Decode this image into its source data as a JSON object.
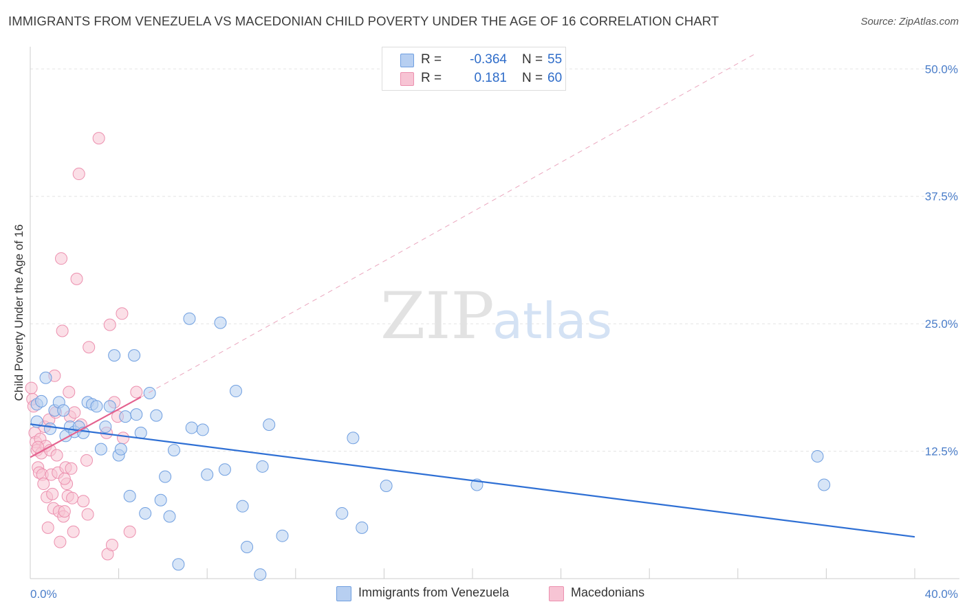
{
  "header": {
    "title": "IMMIGRANTS FROM VENEZUELA VS MACEDONIAN CHILD POVERTY UNDER THE AGE OF 16 CORRELATION CHART",
    "source": "Source: ZipAtlas.com"
  },
  "watermark": {
    "zip": "ZIP",
    "atlas": "atlas"
  },
  "stats": [
    {
      "r_label": "R =",
      "r_value": "-0.364",
      "n_label": "N =",
      "n_value": "55"
    },
    {
      "r_label": "R =",
      "r_value": "0.181",
      "n_label": "N =",
      "n_value": "60"
    }
  ],
  "legend": {
    "series1": "Immigrants from Venezuela",
    "series2": "Macedonians"
  },
  "colors": {
    "blue_fill": "#b7cff1",
    "blue_stroke": "#6e9ee0",
    "blue_line": "#2e6fd4",
    "pink_fill": "#f7c4d4",
    "pink_stroke": "#ec8fae",
    "pink_line": "#e4628f",
    "tick_label": "#4a7dc9",
    "grid": "#e3e3e3"
  },
  "chart_data": {
    "type": "scatter",
    "title": "IMMIGRANTS FROM VENEZUELA VS MACEDONIAN CHILD POVERTY UNDER THE AGE OF 16 CORRELATION CHART",
    "xlabel": "",
    "ylabel": "Child Poverty Under the Age of 16",
    "xlim": [
      0,
      40
    ],
    "ylim": [
      0,
      51.5
    ],
    "x_tick_labels": [
      "0.0%",
      "40.0%"
    ],
    "y_ticks": [
      12.5,
      25.0,
      37.5,
      50.0
    ],
    "y_tick_labels": [
      "12.5%",
      "25.0%",
      "37.5%",
      "50.0%"
    ],
    "grid": true,
    "legend_position": "bottom-center",
    "series": [
      {
        "name": "Immigrants from Venezuela",
        "r": -0.364,
        "n": 55,
        "points": [
          [
            0.3,
            17.1
          ],
          [
            0.3,
            15.4
          ],
          [
            0.7,
            19.7
          ],
          [
            0.9,
            14.7
          ],
          [
            1.1,
            16.5
          ],
          [
            1.3,
            17.3
          ],
          [
            1.5,
            16.5
          ],
          [
            1.6,
            14.0
          ],
          [
            1.8,
            14.9
          ],
          [
            2.0,
            14.4
          ],
          [
            2.2,
            14.9
          ],
          [
            2.4,
            14.3
          ],
          [
            2.6,
            17.3
          ],
          [
            2.8,
            17.1
          ],
          [
            3.0,
            16.9
          ],
          [
            3.2,
            12.7
          ],
          [
            3.4,
            14.9
          ],
          [
            3.6,
            16.9
          ],
          [
            3.8,
            21.9
          ],
          [
            4.0,
            12.1
          ],
          [
            4.1,
            12.7
          ],
          [
            4.3,
            15.9
          ],
          [
            4.5,
            8.1
          ],
          [
            4.7,
            21.9
          ],
          [
            4.8,
            16.1
          ],
          [
            5.0,
            14.3
          ],
          [
            5.2,
            6.4
          ],
          [
            5.4,
            18.2
          ],
          [
            5.7,
            16.0
          ],
          [
            5.9,
            7.7
          ],
          [
            6.1,
            10.0
          ],
          [
            6.3,
            6.1
          ],
          [
            6.5,
            12.6
          ],
          [
            6.7,
            1.4
          ],
          [
            7.2,
            25.5
          ],
          [
            7.3,
            14.8
          ],
          [
            7.8,
            14.6
          ],
          [
            8.0,
            10.2
          ],
          [
            8.6,
            25.1
          ],
          [
            8.8,
            10.7
          ],
          [
            9.3,
            18.4
          ],
          [
            9.6,
            7.1
          ],
          [
            9.8,
            3.1
          ],
          [
            10.4,
            0.4
          ],
          [
            10.5,
            11.0
          ],
          [
            10.8,
            15.1
          ],
          [
            11.4,
            4.2
          ],
          [
            14.1,
            6.4
          ],
          [
            14.6,
            13.8
          ],
          [
            15.0,
            5.0
          ],
          [
            16.1,
            9.1
          ],
          [
            20.2,
            9.2
          ],
          [
            35.6,
            12.0
          ],
          [
            35.9,
            9.2
          ],
          [
            0.5,
            17.4
          ]
        ]
      },
      {
        "name": "Macedonians",
        "r": 0.181,
        "n": 60,
        "points": [
          [
            0.05,
            18.7
          ],
          [
            0.1,
            17.6
          ],
          [
            0.15,
            16.9
          ],
          [
            0.2,
            14.3
          ],
          [
            0.25,
            13.4
          ],
          [
            0.3,
            12.6
          ],
          [
            0.35,
            10.9
          ],
          [
            0.4,
            10.4
          ],
          [
            0.45,
            13.7
          ],
          [
            0.5,
            12.3
          ],
          [
            0.55,
            10.2
          ],
          [
            0.6,
            9.3
          ],
          [
            0.65,
            14.9
          ],
          [
            0.7,
            13.0
          ],
          [
            0.75,
            8.0
          ],
          [
            0.8,
            5.0
          ],
          [
            0.85,
            15.6
          ],
          [
            0.9,
            12.6
          ],
          [
            0.95,
            10.2
          ],
          [
            1.0,
            8.3
          ],
          [
            1.05,
            6.9
          ],
          [
            1.1,
            19.9
          ],
          [
            1.15,
            16.3
          ],
          [
            1.2,
            12.1
          ],
          [
            1.25,
            10.4
          ],
          [
            1.3,
            6.6
          ],
          [
            1.35,
            3.6
          ],
          [
            1.4,
            31.4
          ],
          [
            1.45,
            24.3
          ],
          [
            1.5,
            6.1
          ],
          [
            1.55,
            6.6
          ],
          [
            1.6,
            10.9
          ],
          [
            1.65,
            9.3
          ],
          [
            1.7,
            8.1
          ],
          [
            1.75,
            18.3
          ],
          [
            1.8,
            15.9
          ],
          [
            1.85,
            10.8
          ],
          [
            1.9,
            7.9
          ],
          [
            1.95,
            4.6
          ],
          [
            2.0,
            16.3
          ],
          [
            2.1,
            29.4
          ],
          [
            2.2,
            39.7
          ],
          [
            2.3,
            15.1
          ],
          [
            2.4,
            7.6
          ],
          [
            2.55,
            11.6
          ],
          [
            2.6,
            6.3
          ],
          [
            2.65,
            22.7
          ],
          [
            3.1,
            43.2
          ],
          [
            3.45,
            14.3
          ],
          [
            3.5,
            2.4
          ],
          [
            3.6,
            24.9
          ],
          [
            3.7,
            3.3
          ],
          [
            3.8,
            17.3
          ],
          [
            3.95,
            15.9
          ],
          [
            4.15,
            26.0
          ],
          [
            4.2,
            13.8
          ],
          [
            4.5,
            4.6
          ],
          [
            4.8,
            18.3
          ],
          [
            1.55,
            9.8
          ],
          [
            0.35,
            12.9
          ]
        ]
      }
    ],
    "trend_lines": [
      {
        "series": "Immigrants from Venezuela",
        "x": [
          0,
          40
        ],
        "y": [
          15.15,
          4.1
        ]
      },
      {
        "series": "Macedonians",
        "x": [
          0,
          5.0
        ],
        "y": [
          11.9,
          17.8
        ]
      },
      {
        "series": "Macedonians (extrapolated)",
        "x": [
          5.0,
          32.8
        ],
        "y": [
          17.8,
          51.5
        ]
      }
    ]
  }
}
